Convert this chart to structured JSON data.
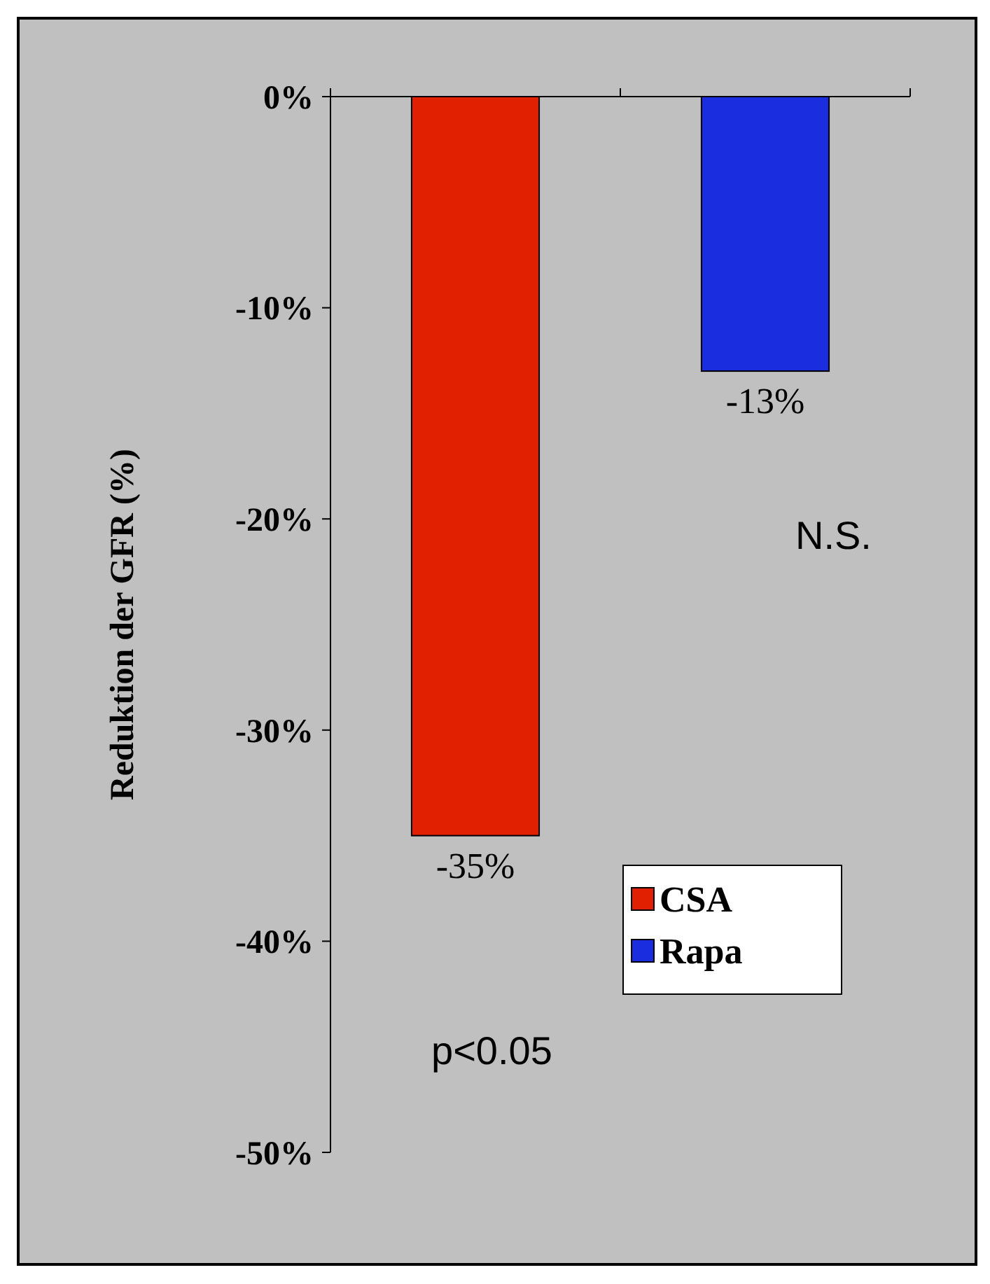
{
  "chart_data": {
    "type": "bar",
    "ylabel": "Reduktion der GFR (%)",
    "categories": [
      null,
      null
    ],
    "series": [
      {
        "name": "CSA",
        "color": "#e02000",
        "values": [
          -35,
          null
        ],
        "value_labels": [
          "-35%",
          null
        ]
      },
      {
        "name": "Rapa",
        "color": "#1a2ee0",
        "values": [
          null,
          -13
        ],
        "value_labels": [
          null,
          "-13%"
        ]
      }
    ],
    "ylim": [
      -50,
      0
    ],
    "yticks": [
      {
        "value": 0,
        "label": "0%"
      },
      {
        "value": -10,
        "label": "-10%"
      },
      {
        "value": -20,
        "label": "-20%"
      },
      {
        "value": -30,
        "label": "-30%"
      },
      {
        "value": -40,
        "label": "-40%"
      },
      {
        "value": -50,
        "label": "-50%"
      }
    ],
    "annotations": [
      "p<0.05",
      "N.S."
    ],
    "legend": "bottom right",
    "grid": false
  }
}
